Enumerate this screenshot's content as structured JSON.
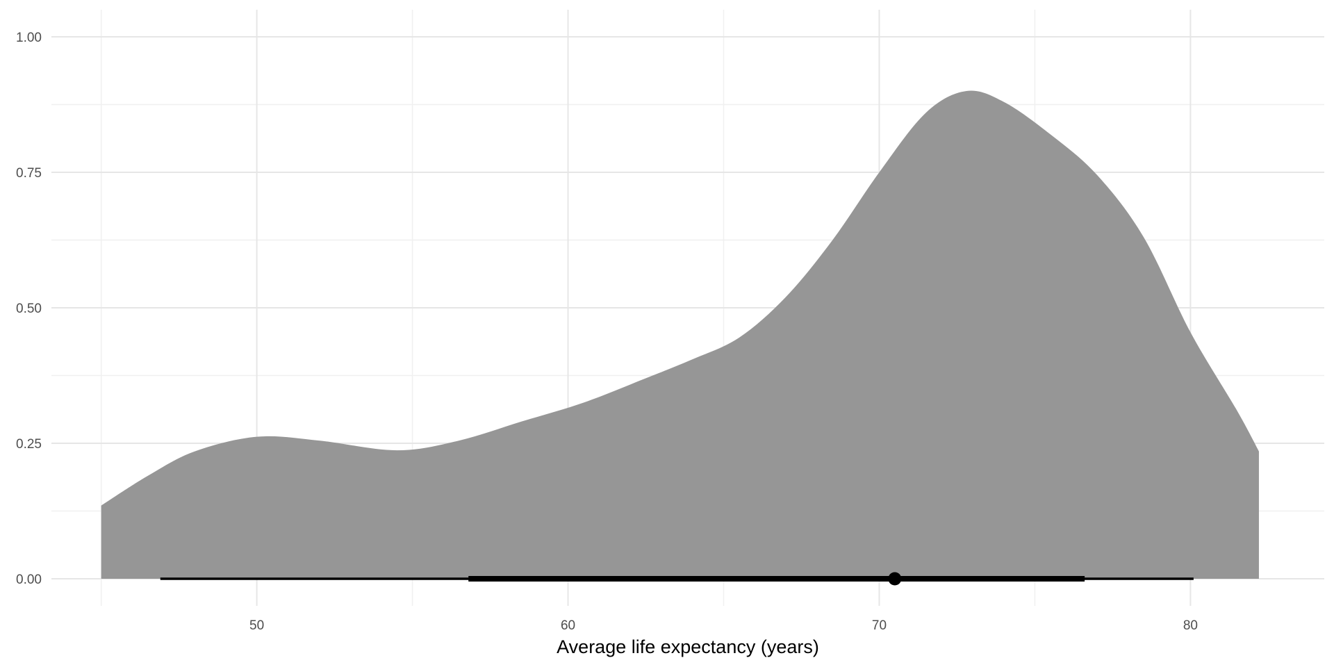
{
  "chart_data": {
    "type": "area",
    "title": "",
    "xlabel": "Average life expectancy (years)",
    "ylabel": "",
    "xlim": [
      43.4,
      84.3
    ],
    "ylim": [
      -0.05,
      1.05
    ],
    "x_ticks": [
      {
        "value": 50,
        "label": "50"
      },
      {
        "value": 60,
        "label": "60"
      },
      {
        "value": 70,
        "label": "70"
      },
      {
        "value": 80,
        "label": "80"
      }
    ],
    "x_minor_ticks": [
      45,
      55,
      65,
      75
    ],
    "y_ticks": [
      {
        "value": 0,
        "label": "0.00"
      },
      {
        "value": 0.25,
        "label": "0.25"
      },
      {
        "value": 0.5,
        "label": "0.50"
      },
      {
        "value": 0.75,
        "label": "0.75"
      },
      {
        "value": 1,
        "label": "1.00"
      }
    ],
    "y_minor_ticks": [
      0.125,
      0.375,
      0.625,
      0.875
    ],
    "grid": true,
    "legend": "none",
    "fill_color": "#969696",
    "interval_color": "#000000",
    "density": {
      "x": [
        45.0,
        46.5,
        48.0,
        50.0,
        52.0,
        54.5,
        56.5,
        58.5,
        60.5,
        62.5,
        64.0,
        65.5,
        67.0,
        68.5,
        70.0,
        71.5,
        72.8,
        74.0,
        75.5,
        77.0,
        78.5,
        80.0,
        81.5,
        82.2
      ],
      "y": [
        0.135,
        0.19,
        0.235,
        0.262,
        0.255,
        0.237,
        0.255,
        0.29,
        0.325,
        0.37,
        0.405,
        0.445,
        0.52,
        0.625,
        0.75,
        0.86,
        0.9,
        0.88,
        0.82,
        0.745,
        0.63,
        0.455,
        0.31,
        0.235
      ]
    },
    "interval": {
      "median": 70.5,
      "inner": [
        56.8,
        76.6
      ],
      "outer": [
        46.9,
        80.1
      ]
    }
  }
}
